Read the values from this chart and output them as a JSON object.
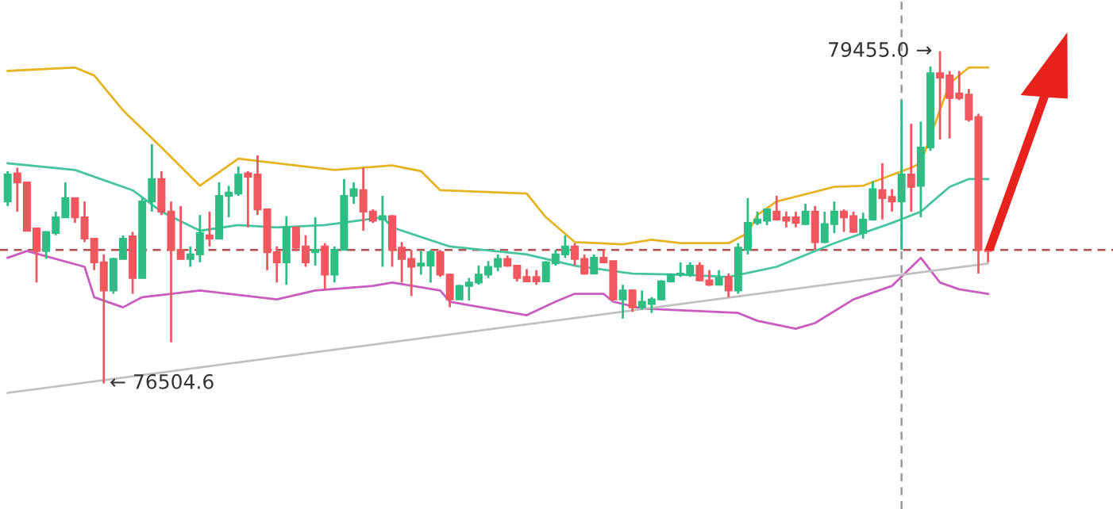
{
  "chart_data": {
    "type": "candlestick",
    "categories": [
      null,
      null,
      null,
      null,
      null,
      null,
      null,
      null,
      null,
      null,
      null,
      null,
      null,
      null,
      null,
      null,
      null,
      null,
      null,
      null,
      null,
      null,
      null,
      null,
      null,
      null,
      null,
      null,
      null,
      null,
      null,
      null,
      null,
      null,
      null,
      null,
      null,
      null,
      null,
      null,
      null,
      null,
      null,
      null,
      null,
      null,
      null,
      null,
      null,
      null,
      null,
      null,
      null,
      null,
      null,
      null,
      null,
      null,
      null,
      null,
      null,
      null,
      null,
      null,
      null,
      null,
      null,
      null,
      null,
      null,
      null,
      null,
      null,
      null,
      null,
      null,
      null,
      null,
      null,
      null,
      null,
      null,
      null,
      null,
      null,
      null,
      null,
      null,
      null,
      null,
      null,
      null,
      null,
      null,
      null,
      null,
      null,
      null,
      null,
      null,
      null,
      null,
      null
    ],
    "ohlc": [
      [
        78120,
        78390,
        78080,
        78360
      ],
      [
        78370,
        78420,
        78030,
        78290
      ],
      [
        78290,
        78290,
        77860,
        77860
      ],
      [
        77880,
        77880,
        77400,
        77680
      ],
      [
        77680,
        77850,
        77610,
        77850
      ],
      [
        77840,
        78030,
        77820,
        77980
      ],
      [
        77980,
        78290,
        77980,
        78150
      ],
      [
        78150,
        78150,
        77930,
        77980
      ],
      [
        77980,
        78120,
        77760,
        77790
      ],
      [
        77790,
        77790,
        77510,
        77580
      ],
      [
        77580,
        77650,
        76504.6,
        77330
      ],
      [
        77330,
        77620,
        77300,
        77610
      ],
      [
        77610,
        77820,
        77610,
        77790
      ],
      [
        77810,
        77850,
        77300,
        77440
      ],
      [
        77440,
        78150,
        77440,
        78120
      ],
      [
        78120,
        78630,
        78030,
        78320
      ],
      [
        78320,
        78390,
        78000,
        78030
      ],
      [
        78030,
        78120,
        76870,
        77690
      ],
      [
        77690,
        78080,
        77610,
        77610
      ],
      [
        77610,
        77720,
        77540,
        77650
      ],
      [
        77650,
        78000,
        77580,
        77840
      ],
      [
        77820,
        78030,
        77720,
        77790
      ],
      [
        77790,
        78290,
        77790,
        78170
      ],
      [
        78170,
        78260,
        77980,
        78200
      ],
      [
        78190,
        78430,
        78170,
        78360
      ],
      [
        78370,
        78390,
        77890,
        78340
      ],
      [
        78360,
        78530,
        78000,
        78050
      ],
      [
        78050,
        78050,
        77510,
        77670
      ],
      [
        77670,
        77720,
        77400,
        77580
      ],
      [
        77580,
        77990,
        77380,
        77890
      ],
      [
        77890,
        77890,
        77680,
        77710
      ],
      [
        77720,
        77820,
        77540,
        77580
      ],
      [
        77670,
        77980,
        77550,
        77690
      ],
      [
        77720,
        77750,
        77340,
        77470
      ],
      [
        77470,
        77720,
        77400,
        77690
      ],
      [
        77690,
        78320,
        77690,
        78170
      ],
      [
        78170,
        78290,
        78100,
        78230
      ],
      [
        78220,
        78420,
        77860,
        78030
      ],
      [
        78030,
        78050,
        77930,
        77950
      ],
      [
        77960,
        78170,
        77540,
        77990
      ],
      [
        77990,
        78000,
        77540,
        77690
      ],
      [
        77710,
        77760,
        77400,
        77610
      ],
      [
        77610,
        77690,
        77280,
        77540
      ],
      [
        77550,
        77680,
        77470,
        77570
      ],
      [
        77550,
        77690,
        77400,
        77670
      ],
      [
        77670,
        77690,
        77450,
        77470
      ],
      [
        77470,
        77480,
        77180,
        77250
      ],
      [
        77250,
        77380,
        77250,
        77370
      ],
      [
        77370,
        77440,
        77240,
        77400
      ],
      [
        77400,
        77550,
        77380,
        77470
      ],
      [
        77470,
        77590,
        77440,
        77540
      ],
      [
        77540,
        77650,
        77500,
        77610
      ],
      [
        77610,
        77640,
        77540,
        77550
      ],
      [
        77550,
        77550,
        77410,
        77440
      ],
      [
        77450,
        77520,
        77410,
        77410
      ],
      [
        77450,
        77510,
        77380,
        77410
      ],
      [
        77410,
        77590,
        77410,
        77580
      ],
      [
        77570,
        77690,
        77550,
        77650
      ],
      [
        77650,
        77820,
        77620,
        77720
      ],
      [
        77720,
        77750,
        77550,
        77610
      ],
      [
        77610,
        77650,
        77470,
        77480
      ],
      [
        77480,
        77650,
        77480,
        77620
      ],
      [
        77620,
        77690,
        77570,
        77580
      ],
      [
        77590,
        77590,
        77250,
        77250
      ],
      [
        77250,
        77380,
        77080,
        77330
      ],
      [
        77330,
        77340,
        77140,
        77180
      ],
      [
        77180,
        77330,
        77160,
        77230
      ],
      [
        77210,
        77270,
        77130,
        77250
      ],
      [
        77250,
        77420,
        77240,
        77410
      ],
      [
        77410,
        77470,
        77400,
        77470
      ],
      [
        77470,
        77580,
        77450,
        77480
      ],
      [
        77470,
        77580,
        77450,
        77550
      ],
      [
        77550,
        77580,
        77410,
        77420
      ],
      [
        77420,
        77510,
        77370,
        77380
      ],
      [
        77380,
        77510,
        77380,
        77440
      ],
      [
        77450,
        77480,
        77270,
        77330
      ],
      [
        77330,
        77750,
        77300,
        77710
      ],
      [
        77690,
        78150,
        77650,
        77930
      ],
      [
        77930,
        78030,
        77910,
        77960
      ],
      [
        77950,
        78050,
        77910,
        78050
      ],
      [
        78030,
        78170,
        77950,
        77960
      ],
      [
        77980,
        78030,
        77890,
        77950
      ],
      [
        77980,
        78030,
        77890,
        77930
      ],
      [
        77920,
        78100,
        77910,
        78030
      ],
      [
        78030,
        78080,
        77690,
        77760
      ],
      [
        77760,
        78030,
        77750,
        77920
      ],
      [
        77920,
        78120,
        77840,
        78030
      ],
      [
        78030,
        78050,
        77850,
        77980
      ],
      [
        77990,
        78030,
        77840,
        77850
      ],
      [
        77840,
        78020,
        77790,
        77960
      ],
      [
        77960,
        78300,
        77950,
        78230
      ],
      [
        78220,
        78460,
        77960,
        78150
      ],
      [
        78160,
        78230,
        78030,
        78120
      ],
      [
        78120,
        79020,
        77690,
        78360
      ],
      [
        78360,
        78810,
        78030,
        78250
      ],
      [
        78260,
        78830,
        77980,
        78600
      ],
      [
        78600,
        79320,
        78570,
        79260
      ],
      [
        79260,
        79455.0,
        78670,
        79220
      ],
      [
        79240,
        79280,
        78680,
        79040
      ],
      [
        79080,
        79280,
        79020,
        79040
      ],
      [
        79070,
        79120,
        78830,
        78850
      ],
      [
        78870,
        78900,
        77480,
        77690
      ],
      [
        77690,
        77690,
        77580,
        77680
      ]
    ],
    "colors": [
      "#2ebd85",
      "#f0575e",
      "#f0575e",
      "#f0575e",
      "#2ebd85",
      "#2ebd85",
      "#2ebd85",
      "#f0575e",
      "#f0575e",
      "#f0575e",
      "#f0575e",
      "#2ebd85",
      "#2ebd85",
      "#f0575e",
      "#2ebd85",
      "#2ebd85",
      "#f0575e",
      "#f0575e",
      "#f0575e",
      "#2ebd85",
      "#2ebd85",
      "#f0575e",
      "#2ebd85",
      "#2ebd85",
      "#2ebd85",
      "#f0575e",
      "#f0575e",
      "#f0575e",
      "#f0575e",
      "#2ebd85",
      "#f0575e",
      "#f0575e",
      "#2ebd85",
      "#f0575e",
      "#2ebd85",
      "#2ebd85",
      "#2ebd85",
      "#f0575e",
      "#f0575e",
      "#2ebd85",
      "#f0575e",
      "#f0575e",
      "#f0575e",
      "#2ebd85",
      "#2ebd85",
      "#f0575e",
      "#f0575e",
      "#2ebd85",
      "#2ebd85",
      "#2ebd85",
      "#2ebd85",
      "#2ebd85",
      "#f0575e",
      "#f0575e",
      "#f0575e",
      "#f0575e",
      "#2ebd85",
      "#2ebd85",
      "#2ebd85",
      "#f0575e",
      "#f0575e",
      "#2ebd85",
      "#f0575e",
      "#f0575e",
      "#2ebd85",
      "#f0575e",
      "#2ebd85",
      "#2ebd85",
      "#2ebd85",
      "#2ebd85",
      "#2ebd85",
      "#2ebd85",
      "#f0575e",
      "#f0575e",
      "#2ebd85",
      "#f0575e",
      "#2ebd85",
      "#2ebd85",
      "#2ebd85",
      "#2ebd85",
      "#f0575e",
      "#f0575e",
      "#f0575e",
      "#2ebd85",
      "#f0575e",
      "#2ebd85",
      "#2ebd85",
      "#f0575e",
      "#f0575e",
      "#2ebd85",
      "#2ebd85",
      "#f0575e",
      "#f0575e",
      "#2ebd85",
      "#f0575e",
      "#2ebd85",
      "#2ebd85",
      "#f0575e",
      "#f0575e",
      "#f0575e",
      "#f0575e",
      "#f0575e",
      "#f0575e"
    ],
    "series": [
      {
        "type": "line",
        "color": "#e6b422",
        "values": [
          79280,
          null,
          null,
          null,
          null,
          null,
          null,
          79310,
          null,
          79240,
          null,
          null,
          78930,
          null,
          null,
          null,
          78600,
          null,
          null,
          null,
          78260,
          null,
          null,
          null,
          78500,
          null,
          null,
          null,
          78460,
          null,
          null,
          null,
          null,
          null,
          78400,
          null,
          null,
          null,
          null,
          null,
          78440,
          null,
          null,
          78390,
          null,
          78220,
          null,
          null,
          null,
          null,
          null,
          null,
          null,
          null,
          78190,
          null,
          77980,
          null,
          null,
          77760,
          null,
          null,
          null,
          null,
          77740,
          null,
          null,
          77780,
          null,
          null,
          77750,
          null,
          null,
          null,
          null,
          77750,
          null,
          77840,
          78000,
          null,
          78120,
          null,
          null,
          null,
          null,
          null,
          78250,
          null,
          null,
          78260,
          null,
          null,
          null,
          null,
          78420,
          78460,
          null,
          null,
          79170,
          null,
          79310,
          null,
          79310
        ]
      },
      {
        "type": "line",
        "color": "#45c4a0",
        "values": [
          78460,
          null,
          null,
          null,
          null,
          null,
          null,
          78400,
          null,
          null,
          null,
          null,
          null,
          78220,
          null,
          null,
          78030,
          null,
          null,
          null,
          77860,
          null,
          null,
          null,
          77910,
          null,
          null,
          null,
          77890,
          null,
          null,
          null,
          null,
          77910,
          null,
          null,
          null,
          null,
          null,
          77980,
          77890,
          null,
          null,
          null,
          null,
          null,
          77720,
          null,
          null,
          null,
          null,
          null,
          null,
          null,
          77650,
          null,
          null,
          null,
          null,
          77550,
          null,
          null,
          null,
          null,
          null,
          77480,
          null,
          null,
          null,
          null,
          77470,
          null,
          null,
          null,
          null,
          77450,
          null,
          null,
          null,
          null,
          77540,
          null,
          null,
          null,
          null,
          null,
          77750,
          null,
          null,
          null,
          null,
          null,
          77930,
          null,
          null,
          78030,
          null,
          null,
          78250,
          null,
          78320,
          null,
          78320
        ]
      },
      {
        "type": "line",
        "color": "#c85cbf",
        "values": [
          77620,
          null,
          77680,
          null,
          null,
          null,
          null,
          null,
          77540,
          77270,
          null,
          null,
          77180,
          null,
          77270,
          null,
          null,
          null,
          null,
          null,
          77330,
          null,
          null,
          null,
          null,
          null,
          null,
          null,
          77250,
          null,
          null,
          null,
          77330,
          null,
          null,
          null,
          null,
          null,
          77370,
          null,
          77400,
          null,
          null,
          null,
          null,
          77330,
          77230,
          null,
          null,
          null,
          null,
          null,
          null,
          null,
          77110,
          null,
          null,
          77230,
          null,
          77300,
          null,
          null,
          77300,
          77230,
          null,
          null,
          77170,
          null,
          null,
          null,
          null,
          null,
          null,
          null,
          null,
          null,
          77130,
          null,
          77060,
          null,
          null,
          null,
          76990,
          null,
          77040,
          null,
          null,
          null,
          77250,
          null,
          null,
          null,
          77370,
          null,
          null,
          77620,
          null,
          77400,
          null,
          77340,
          null,
          null,
          77300
        ]
      },
      {
        "type": "line",
        "color": "#c0c0c0",
        "values": [
          76420,
          null,
          null,
          null,
          null,
          null,
          null,
          null,
          null,
          null,
          null,
          null,
          null,
          null,
          null,
          null,
          null,
          null,
          null,
          null,
          null,
          null,
          null,
          null,
          null,
          null,
          null,
          null,
          null,
          null,
          null,
          null,
          null,
          null,
          null,
          null,
          null,
          null,
          null,
          null,
          null,
          null,
          null,
          null,
          null,
          null,
          null,
          null,
          null,
          null,
          null,
          null,
          null,
          null,
          null,
          null,
          null,
          null,
          null,
          null,
          null,
          null,
          null,
          null,
          null,
          null,
          null,
          null,
          null,
          null,
          null,
          null,
          null,
          null,
          null,
          null,
          null,
          null,
          null,
          null,
          null,
          null,
          null,
          null,
          null,
          null,
          null,
          null,
          null,
          null,
          null,
          null,
          null,
          null,
          null,
          null,
          null,
          null,
          null,
          null,
          null,
          null,
          77570
        ]
      }
    ],
    "ref_lines": [
      {
        "axis": "y",
        "value": 77690,
        "color": "#b05050",
        "line_style": "dashed"
      }
    ],
    "annotations": [
      "79455.0 →",
      "← 76504.6"
    ],
    "legend": false,
    "grid": false
  }
}
